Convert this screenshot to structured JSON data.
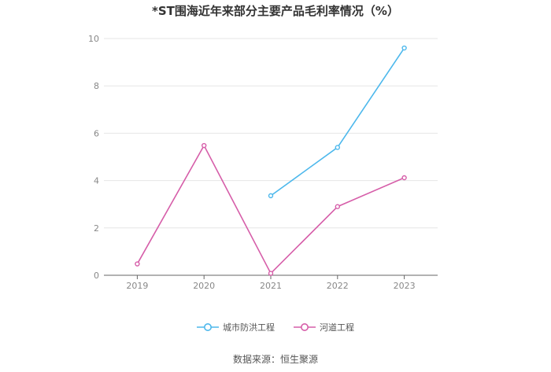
{
  "title": "*ST围海近年来部分主要产品毛利率情况（%）",
  "source": "数据来源：恒生聚源",
  "chart_data": {
    "type": "line",
    "title": "*ST围海近年来部分主要产品毛利率情况（%）",
    "categories": [
      "2019",
      "2020",
      "2021",
      "2022",
      "2023"
    ],
    "ylim": [
      0,
      10
    ],
    "yticks": [
      "0",
      "2",
      "4",
      "6",
      "8",
      "10"
    ],
    "grid": true,
    "legend_position": "bottom",
    "series": [
      {
        "name": "城市防洪工程",
        "color": "#4db8ec",
        "values": [
          null,
          null,
          3.36,
          5.4,
          9.6
        ]
      },
      {
        "name": "河道工程",
        "color": "#d65ea9",
        "values": [
          0.48,
          5.48,
          0.08,
          2.9,
          4.12
        ]
      }
    ]
  }
}
